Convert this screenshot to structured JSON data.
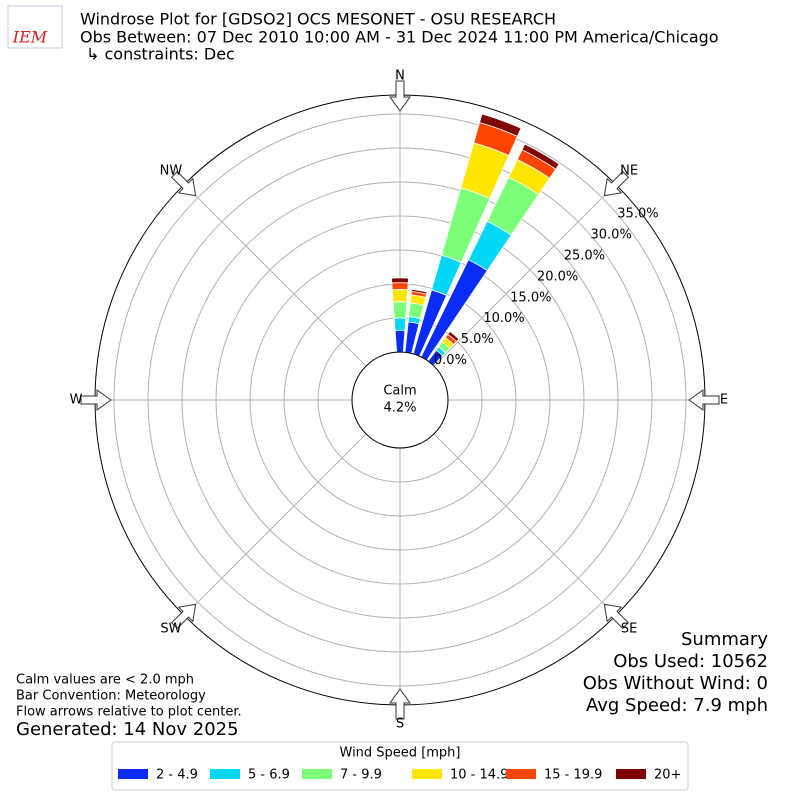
{
  "chart_data": {
    "type": "windrose",
    "logo": "IEM",
    "title": "Windrose Plot for [GDSO2] OCS MESONET - OSU RESEARCH",
    "subtitle": "Obs Between: 07 Dec 2010 10:00 AM - 31 Dec 2024 11:00 PM America/Chicago",
    "constraints": "↳ constraints: Dec",
    "compass": [
      "N",
      "NE",
      "E",
      "SE",
      "S",
      "SW",
      "W",
      "NW"
    ],
    "calm_label": "Calm",
    "calm": {
      "value": 4.2,
      "label": "4.2%"
    },
    "x": [
      0,
      10,
      20,
      30,
      40
    ],
    "rlim": [
      0,
      37.8
    ],
    "rticks": [
      {
        "value": 0,
        "label": "0.0%"
      },
      {
        "value": 5,
        "label": "5.0%"
      },
      {
        "value": 10,
        "label": "10.0%"
      },
      {
        "value": 15,
        "label": "15.0%"
      },
      {
        "value": 20,
        "label": "20.0%"
      },
      {
        "value": 25,
        "label": "25.0%"
      },
      {
        "value": 30,
        "label": "30.0%"
      },
      {
        "value": 35,
        "label": "35.0%"
      }
    ],
    "grid": true,
    "legend_title": "Wind Speed [mph]",
    "series": [
      {
        "name": "2 - 4.9",
        "color": "#0a2cf5",
        "values": [
          3.2,
          4.5,
          9.8,
          15.9,
          2.0
        ]
      },
      {
        "name": "5 - 6.9",
        "color": "#00d6f5",
        "values": [
          1.8,
          0.8,
          5.3,
          6.3,
          0.6
        ]
      },
      {
        "name": "7 - 9.9",
        "color": "#7cff79",
        "values": [
          2.4,
          2.0,
          10.3,
          7.2,
          0.9
        ]
      },
      {
        "name": "10 - 14.9",
        "color": "#ffe500",
        "values": [
          1.8,
          1.2,
          6.9,
          2.9,
          0.8
        ]
      },
      {
        "name": "15 - 19.9",
        "color": "#ff4500",
        "values": [
          1.0,
          0.5,
          3.1,
          1.6,
          0.6
        ]
      },
      {
        "name": "20+",
        "color": "#800000",
        "values": [
          0.7,
          0.3,
          1.3,
          0.9,
          0.5
        ]
      }
    ],
    "summary": [
      "Summary",
      "Obs Used: 10562",
      "Obs Without Wind: 0",
      "Avg Speed: 7.9 mph"
    ],
    "notes": [
      "Calm values are < 2.0 mph",
      "Bar Convention: Meteorology",
      "Flow arrows relative to plot center."
    ],
    "generated": "Generated: 14 Nov 2025"
  }
}
